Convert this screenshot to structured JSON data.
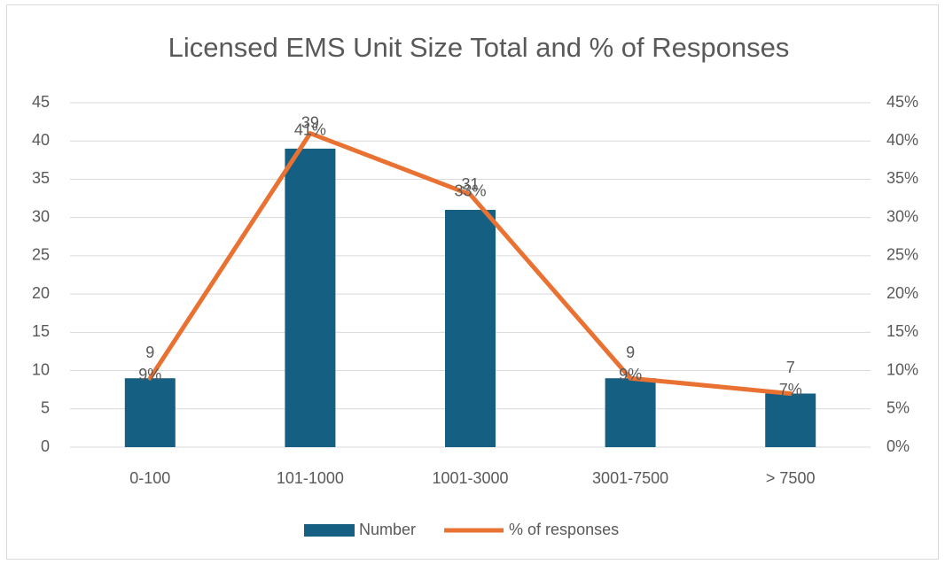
{
  "chart_data": {
    "type": "bar",
    "title": "Licensed EMS Unit Size Total and % of Responses",
    "categories": [
      "0-100",
      "101-1000",
      "1001-3000",
      "3001-7500",
      "> 7500"
    ],
    "series": [
      {
        "name": "Number",
        "type": "bar",
        "color": "#156082",
        "values": [
          9,
          39,
          31,
          9,
          7
        ]
      },
      {
        "name": "% of responses",
        "type": "line",
        "axis": "y2",
        "color": "#e97132",
        "values": [
          9,
          41,
          33,
          9,
          7
        ],
        "value_labels": [
          "9%",
          "41%",
          "33%",
          "9%",
          "7%"
        ]
      }
    ],
    "ylim": [
      0,
      45
    ],
    "yticks": [
      0,
      5,
      10,
      15,
      20,
      25,
      30,
      35,
      40,
      45
    ],
    "y2lim": [
      0,
      45
    ],
    "y2ticks": [
      {
        "value": 0,
        "label": "0%"
      },
      {
        "value": 5,
        "label": "5%"
      },
      {
        "value": 10,
        "label": "10%"
      },
      {
        "value": 15,
        "label": "15%"
      },
      {
        "value": 20,
        "label": "20%"
      },
      {
        "value": 25,
        "label": "25%"
      },
      {
        "value": 30,
        "label": "30%"
      },
      {
        "value": 35,
        "label": "35%"
      },
      {
        "value": 40,
        "label": "40%"
      },
      {
        "value": 45,
        "label": "45%"
      }
    ],
    "grid": true,
    "legend": "bottom"
  }
}
